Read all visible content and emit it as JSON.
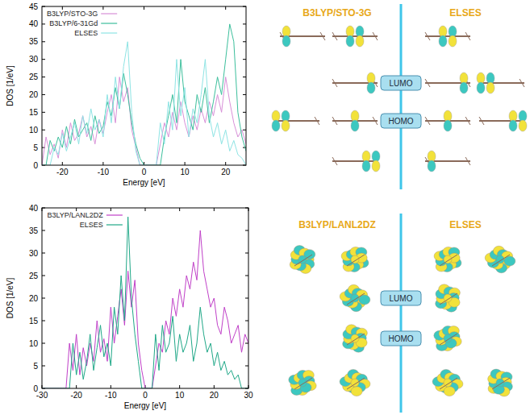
{
  "chart_data": [
    {
      "type": "line",
      "xlabel": "Energy [eV]",
      "ylabel": "DOS [1/eV]",
      "x": [
        -25,
        -24,
        -23,
        -22,
        -21,
        -20,
        -19,
        -18,
        -17,
        -16,
        -15,
        -14,
        -13,
        -12,
        -11,
        -10,
        -9,
        -8,
        -7,
        -6,
        -5,
        -4,
        -3,
        -2,
        -1,
        0,
        1,
        2,
        3,
        4,
        5,
        6,
        7,
        8,
        9,
        10,
        11,
        12,
        13,
        14,
        15,
        16,
        17,
        18,
        19,
        20,
        21,
        22,
        23,
        24,
        25
      ],
      "series": [
        {
          "name": "B3LYP/STO-3G",
          "color": "#d890d8",
          "values": [
            0,
            8,
            3,
            6,
            2,
            10,
            5,
            12,
            7,
            9,
            14,
            8,
            11,
            6,
            13,
            9,
            15,
            20,
            12,
            25,
            18,
            22,
            10,
            5,
            0,
            0,
            0,
            0,
            0,
            6,
            12,
            8,
            15,
            10,
            18,
            12,
            8,
            14,
            10,
            16,
            12,
            18,
            14,
            20,
            15,
            25,
            18,
            12,
            8,
            10,
            6
          ]
        },
        {
          "name": "B3LYP/6-31Gd",
          "color": "#3cbf9c",
          "values": [
            0,
            0,
            7,
            4,
            8,
            5,
            11,
            6,
            13,
            8,
            10,
            12,
            7,
            14,
            9,
            11,
            18,
            14,
            22,
            16,
            26,
            20,
            12,
            6,
            2,
            0,
            0,
            0,
            0,
            0,
            8,
            14,
            20,
            12,
            30,
            18,
            14,
            10,
            20,
            15,
            22,
            12,
            18,
            25,
            20,
            30,
            40,
            35,
            15,
            8,
            4
          ]
        },
        {
          "name": "ELSES",
          "color": "#8ee4e4",
          "values": [
            0,
            0,
            0,
            5,
            3,
            9,
            4,
            8,
            12,
            6,
            14,
            9,
            16,
            10,
            13,
            8,
            20,
            12,
            25,
            16,
            28,
            35,
            15,
            4,
            0,
            0,
            0,
            0,
            0,
            12,
            6,
            18,
            10,
            30,
            14,
            22,
            8,
            16,
            12,
            20,
            30,
            14,
            8,
            12,
            6,
            10,
            4,
            7,
            3,
            2,
            0
          ]
        }
      ],
      "xlim": [
        -25,
        25
      ],
      "xticks": [
        -20,
        -10,
        0,
        10,
        20
      ],
      "ylim": [
        0,
        45
      ],
      "yticks": [
        0,
        5,
        10,
        15,
        20,
        25,
        30,
        35,
        40,
        45
      ],
      "grid": false,
      "legend": "upper left"
    },
    {
      "type": "line",
      "xlabel": "Energy [eV]",
      "ylabel": "DOS [1/eV]",
      "x": [
        -30,
        -29,
        -28,
        -27,
        -26,
        -25,
        -24,
        -23,
        -22,
        -21,
        -20,
        -19,
        -18,
        -17,
        -16,
        -15,
        -14,
        -13,
        -12,
        -11,
        -10,
        -9,
        -8,
        -7,
        -6,
        -5,
        -4,
        -3,
        -2,
        -1,
        0,
        1,
        2,
        3,
        4,
        5,
        6,
        7,
        8,
        9,
        10,
        11,
        12,
        13,
        14,
        15,
        16,
        17,
        18,
        19,
        20,
        21,
        22,
        23,
        24,
        25,
        26,
        27,
        28,
        29,
        30
      ],
      "series": [
        {
          "name": "B3LYP/LANL2DZ",
          "color": "#c040c8",
          "values": [
            0,
            0,
            0,
            0,
            0,
            0,
            0,
            0,
            10,
            4,
            12,
            3,
            9,
            5,
            10,
            6,
            15,
            8,
            11,
            6,
            18,
            10,
            16,
            22,
            14,
            26,
            18,
            24,
            10,
            4,
            0,
            0,
            0,
            5,
            10,
            8,
            15,
            12,
            20,
            16,
            22,
            18,
            25,
            22,
            28,
            24,
            35,
            26,
            22,
            18,
            20,
            14,
            12,
            18,
            15,
            10,
            12,
            14,
            8,
            12,
            10
          ]
        },
        {
          "name": "ELSES",
          "color": "#20a888",
          "values": [
            0,
            0,
            0,
            0,
            0,
            0,
            0,
            0,
            0,
            10,
            3,
            8,
            2,
            6,
            12,
            4,
            9,
            14,
            7,
            10,
            5,
            18,
            12,
            25,
            15,
            38,
            20,
            12,
            6,
            0,
            0,
            0,
            0,
            12,
            4,
            14,
            8,
            10,
            16,
            6,
            12,
            8,
            10,
            14,
            6,
            10,
            18,
            12,
            8,
            10,
            5,
            8,
            4,
            6,
            3,
            4,
            2,
            3,
            0,
            0,
            0
          ]
        }
      ],
      "xlim": [
        -30,
        30
      ],
      "xticks": [
        -30,
        -20,
        -10,
        0,
        10,
        20,
        30
      ],
      "ylim": [
        0,
        40
      ],
      "yticks": [
        0,
        5,
        10,
        15,
        20,
        25,
        30,
        35,
        40
      ],
      "grid": false,
      "legend": "upper left"
    }
  ],
  "orbital_panels": [
    {
      "left_title": "B3LYP/STO-3G",
      "right_title": "ELSES",
      "labels": [
        "LUMO",
        "HOMO"
      ]
    },
    {
      "left_title": "B3LYP/LANL2DZ",
      "right_title": "ELSES",
      "labels": [
        "LUMO",
        "HOMO"
      ]
    }
  ]
}
